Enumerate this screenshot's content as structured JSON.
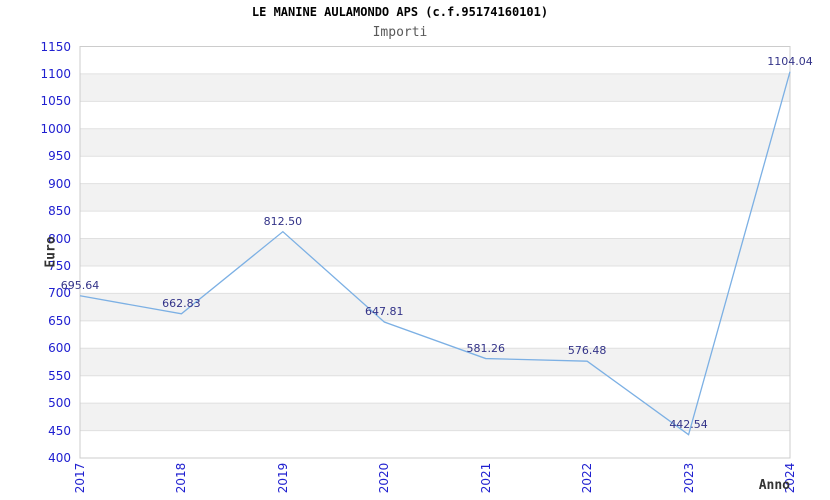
{
  "header": {
    "title": "LE MANINE AULAMONDO APS (c.f.95174160101)",
    "subtitle": "Importi"
  },
  "chart_data": {
    "type": "line",
    "title": "LE MANINE AULAMONDO APS (c.f.95174160101)",
    "subtitle": "Importi",
    "xlabel": "Anno",
    "ylabel": "Euro",
    "categories": [
      "2017",
      "2018",
      "2019",
      "2020",
      "2021",
      "2022",
      "2023",
      "2024"
    ],
    "series": [
      {
        "name": "Importi",
        "values": [
          695.64,
          662.83,
          812.5,
          647.81,
          581.26,
          576.48,
          442.54,
          1104.04
        ],
        "point_labels": [
          "695.64",
          "662.83",
          "812.50",
          "647.81",
          "581.26",
          "576.48",
          "442.54",
          "1104.04"
        ]
      }
    ],
    "ylim": [
      400,
      1150
    ],
    "ytick_step": 50,
    "grid": true,
    "alternating_bands": true,
    "legend": "none",
    "x_tick_rotation_deg": 90,
    "last_label_clipped_at_right_edge": true
  },
  "colors": {
    "line": "#7cb0e4",
    "tick_label": "#2020d0",
    "data_label": "#333388",
    "band": "#f2f2f2",
    "gridline": "#e0e0e0",
    "border": "#cccccc",
    "title": "#000000",
    "subtitle": "#595959",
    "axis_title": "#333333"
  }
}
